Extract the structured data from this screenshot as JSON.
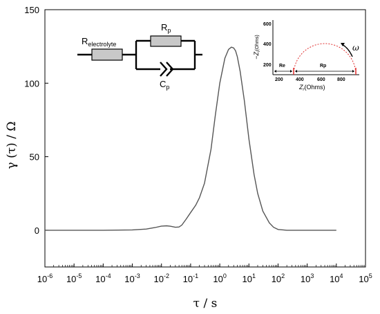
{
  "chart_data": {
    "type": "line",
    "title": "",
    "xlabel": "τ / s",
    "ylabel": "γ (τ) / Ω",
    "xscale": "log",
    "xlim": [
      1e-06,
      100000.0
    ],
    "ylim": [
      -25,
      150
    ],
    "yticks": [
      0,
      50,
      100,
      150
    ],
    "xtick_exponents": [
      -6,
      -5,
      -4,
      -3,
      -2,
      -1,
      0,
      1,
      2,
      3,
      4,
      5
    ],
    "xtick_base": "10",
    "grid": false,
    "line_color": "#555555",
    "series": [
      {
        "x": [
          1e-06,
          0.0001,
          0.001,
          0.003,
          0.006,
          0.01,
          0.015,
          0.02,
          0.03,
          0.04,
          0.05,
          0.07,
          0.1,
          0.15,
          0.2,
          0.3,
          0.5,
          0.7,
          1.0,
          1.5,
          2.0,
          2.5,
          3.0,
          3.5,
          4.0,
          5.0,
          7.0,
          10,
          15,
          20,
          30,
          50,
          70,
          100,
          150,
          200,
          300,
          1000.0,
          10000.0
        ],
        "values": [
          0,
          0,
          0.2,
          0.8,
          1.8,
          2.8,
          3.0,
          2.7,
          2.0,
          2.2,
          3.5,
          7.5,
          12,
          17,
          22,
          32,
          55,
          78,
          100,
          117,
          123,
          124.5,
          124,
          122,
          118,
          108,
          88,
          62,
          38,
          25,
          13,
          5,
          2,
          0.5,
          0.2,
          0,
          0,
          0,
          0
        ]
      }
    ]
  },
  "circuit": {
    "r_electrolyte": "R",
    "r_electrolyte_sub": "electrolyte",
    "r_p": "R",
    "r_p_sub": "p",
    "c_p": "C",
    "c_p_sub": "p"
  },
  "inset": {
    "ylabel_minus": "−",
    "ylabel_z": "Z",
    "ylabel_sub": "i",
    "ylabel_unit": "(Ohms)",
    "xlabel_z": "Z",
    "xlabel_sub": "r",
    "xlabel_unit": "(Ohms)",
    "yticks": [
      "600",
      "400",
      "200"
    ],
    "xticks": [
      "200",
      "400",
      "600",
      "800"
    ],
    "re_label": "Re",
    "rp_label": "Rp",
    "omega_label": "ω",
    "arc_color": "#e03030"
  }
}
